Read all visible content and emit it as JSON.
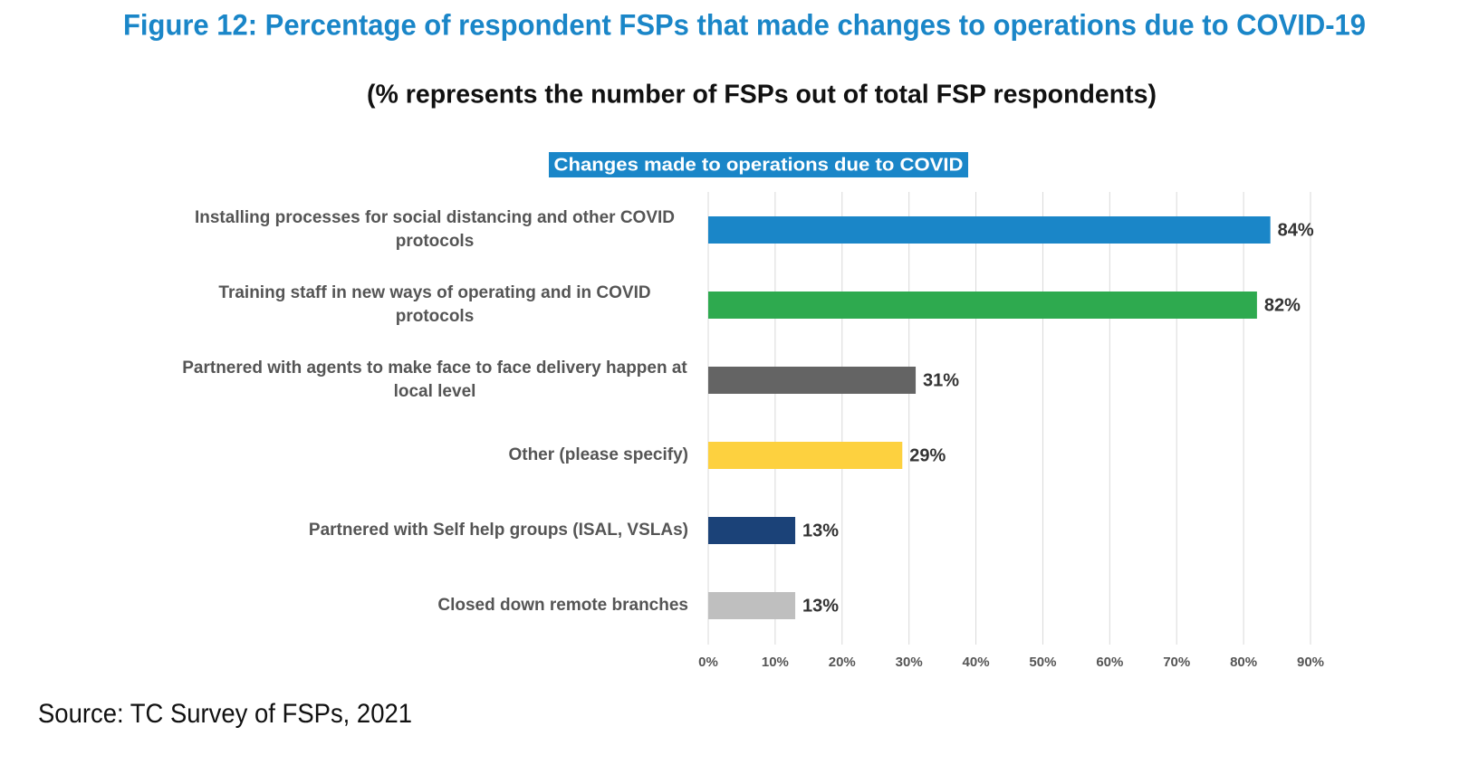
{
  "chart_data": {
    "type": "bar",
    "orientation": "horizontal",
    "title": "Figure 12: Percentage of respondent FSPs that made changes to operations due to COVID-19",
    "subtitle": "(% represents the number of FSPs out of total FSP respondents)",
    "chart_title": "Changes made to operations due to COVID",
    "source": "Source: TC Survey of FSPs, 2021",
    "categories": [
      "Installing processes for social distancing and other COVID protocols",
      "Training staff in new ways of operating and in COVID protocols",
      "Partnered with agents to make face to face delivery happen at local level",
      "Other (please specify)",
      "Partnered with Self help groups (ISAL, VSLAs)",
      "Closed down remote branches"
    ],
    "values": [
      84,
      82,
      31,
      29,
      13,
      13
    ],
    "value_labels": [
      "84%",
      "82%",
      "31%",
      "29%",
      "13%",
      "13%"
    ],
    "colors": [
      "#1a86c8",
      "#2eaa4f",
      "#646464",
      "#fdd13f",
      "#1b4278",
      "#bfbfbf"
    ],
    "xlim": [
      0,
      90
    ],
    "xticks": [
      {
        "value": 0,
        "label": "0%"
      },
      {
        "value": 10,
        "label": "10%"
      },
      {
        "value": 20,
        "label": "20%"
      },
      {
        "value": 30,
        "label": "30%"
      },
      {
        "value": 40,
        "label": "40%"
      },
      {
        "value": 50,
        "label": "50%"
      },
      {
        "value": 60,
        "label": "60%"
      },
      {
        "value": 70,
        "label": "70%"
      },
      {
        "value": 80,
        "label": "80%"
      },
      {
        "value": 90,
        "label": "90%"
      }
    ],
    "grid": true
  }
}
